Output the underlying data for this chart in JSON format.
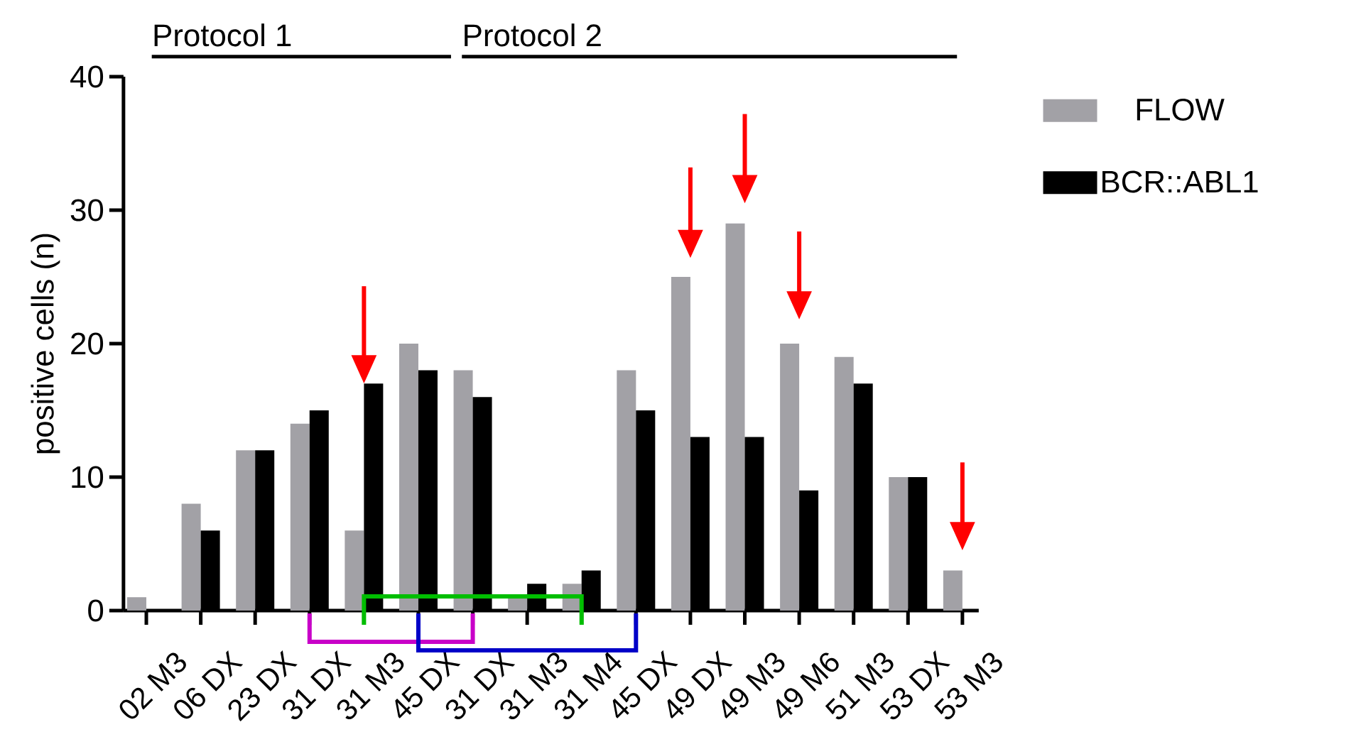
{
  "chart_data": {
    "type": "bar",
    "ylabel": "positive cells (n)",
    "annotations": [
      "Protocol 1",
      "Protocol 2"
    ],
    "categories": [
      "02 M3",
      "06 DX",
      "23 DX",
      "31 DX",
      "31 M3",
      "45 DX",
      "31 DX",
      "31 M3",
      "31 M4",
      "45 DX",
      "49 DX",
      "49 M3",
      "49 M6",
      "51 M3",
      "53 DX",
      "53 M3"
    ],
    "series": [
      {
        "name": "FLOW",
        "color": "#a2a1a6",
        "values": [
          1,
          8,
          12,
          14,
          6,
          20,
          18,
          1,
          2,
          18,
          25,
          29,
          20,
          19,
          10,
          3
        ]
      },
      {
        "name": "BCR::ABL1",
        "color": "#000000",
        "values": [
          0,
          6,
          12,
          15,
          17,
          18,
          16,
          2,
          3,
          15,
          13,
          13,
          9,
          17,
          10,
          0
        ]
      }
    ],
    "ylim": [
      0,
      40
    ],
    "yticks": [
      0,
      10,
      20,
      30,
      40
    ],
    "legend": "top right"
  }
}
